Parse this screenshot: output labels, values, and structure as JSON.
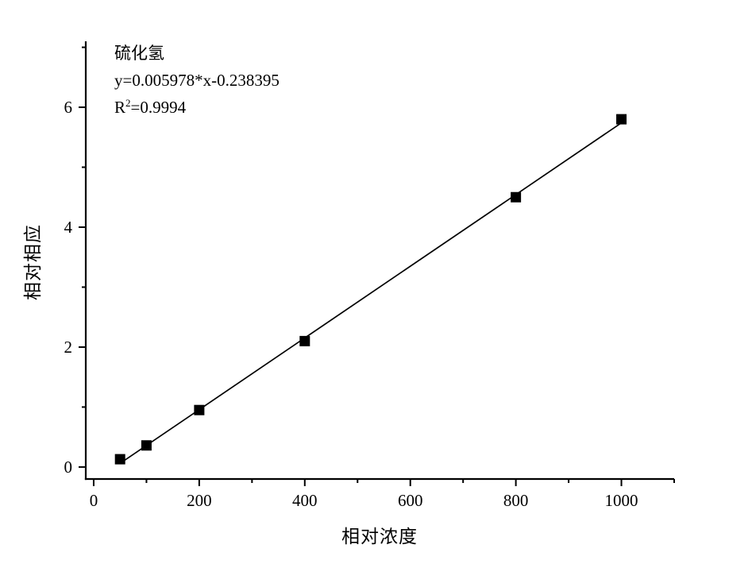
{
  "annotation": {
    "series_title": "硫化氢",
    "equation": "y=0.005978*x-0.238395",
    "r2_base": "R",
    "r2_exponent": "2",
    "r2_value": "=0.9994"
  },
  "axes": {
    "x_title": "相对浓度",
    "y_title": "相对相应"
  },
  "chart_data": {
    "type": "scatter",
    "title": "硫化氢",
    "equation": "y=0.005978*x-0.238395",
    "r_squared": 0.9994,
    "xlabel": "相对浓度",
    "ylabel": "相对相应",
    "x": [
      50,
      100,
      200,
      400,
      800,
      1000
    ],
    "y": [
      0.13,
      0.36,
      0.95,
      2.1,
      4.5,
      5.8
    ],
    "fit_line": {
      "slope": 0.005978,
      "intercept": -0.238395,
      "x_start": 50,
      "x_end": 1000
    },
    "xlim": [
      -15,
      1100
    ],
    "ylim": [
      -0.2,
      7.1
    ],
    "x_major_ticks": [
      0,
      200,
      400,
      600,
      800,
      1000
    ],
    "x_minor_ticks": [
      100,
      300,
      500,
      700,
      900,
      1100
    ],
    "y_major_ticks": [
      0,
      2,
      4,
      6
    ],
    "y_minor_ticks": [
      1,
      3,
      5,
      7
    ],
    "grid": false,
    "legend": "none",
    "marker": "filled-square",
    "marker_size": 13,
    "colors": {
      "axis": "#000000",
      "line": "#000000",
      "marker": "#000000",
      "text": "#000000",
      "background": "#ffffff"
    }
  }
}
